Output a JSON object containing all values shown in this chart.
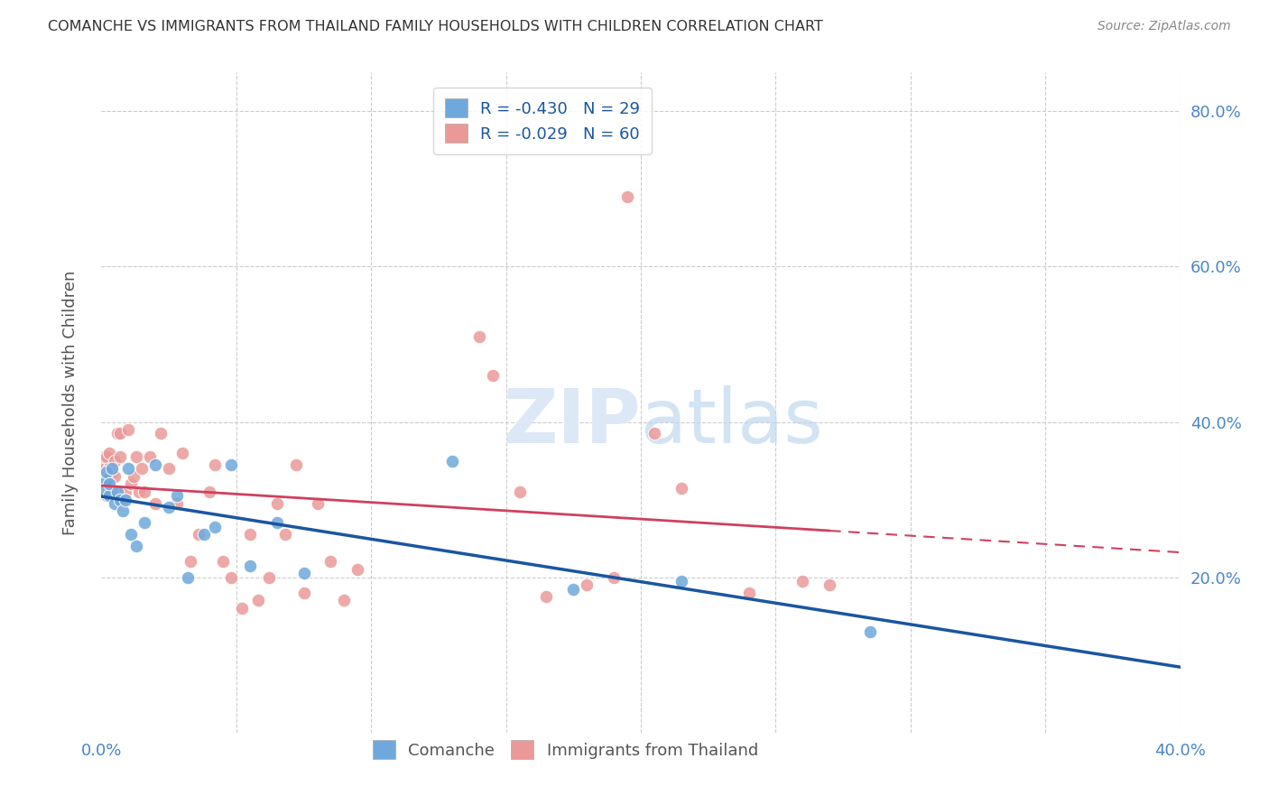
{
  "title": "COMANCHE VS IMMIGRANTS FROM THAILAND FAMILY HOUSEHOLDS WITH CHILDREN CORRELATION CHART",
  "source": "Source: ZipAtlas.com",
  "ylabel": "Family Households with Children",
  "legend_label1": "Comanche",
  "legend_label2": "Immigrants from Thailand",
  "r1": -0.43,
  "n1": 29,
  "r2": -0.029,
  "n2": 60,
  "xlim": [
    0.0,
    0.4
  ],
  "ylim": [
    0.0,
    0.85
  ],
  "color1": "#6fa8dc",
  "color2": "#ea9999",
  "trendline1_color": "#1a56a0",
  "trendline2_color": "#d04060",
  "watermark_color": "#dce8f5",
  "background_color": "#ffffff",
  "comanche_x": [
    0.001,
    0.002,
    0.002,
    0.003,
    0.003,
    0.004,
    0.005,
    0.006,
    0.007,
    0.008,
    0.009,
    0.01,
    0.011,
    0.013,
    0.016,
    0.02,
    0.025,
    0.028,
    0.032,
    0.038,
    0.042,
    0.048,
    0.055,
    0.065,
    0.075,
    0.13,
    0.175,
    0.215,
    0.285
  ],
  "comanche_y": [
    0.31,
    0.325,
    0.335,
    0.305,
    0.32,
    0.34,
    0.295,
    0.31,
    0.3,
    0.285,
    0.3,
    0.34,
    0.255,
    0.24,
    0.27,
    0.345,
    0.29,
    0.305,
    0.2,
    0.255,
    0.265,
    0.345,
    0.215,
    0.27,
    0.205,
    0.35,
    0.185,
    0.195,
    0.13
  ],
  "thailand_x": [
    0.001,
    0.001,
    0.001,
    0.002,
    0.002,
    0.002,
    0.003,
    0.003,
    0.004,
    0.004,
    0.005,
    0.005,
    0.006,
    0.007,
    0.007,
    0.008,
    0.009,
    0.01,
    0.011,
    0.012,
    0.013,
    0.014,
    0.015,
    0.016,
    0.018,
    0.02,
    0.022,
    0.025,
    0.028,
    0.03,
    0.033,
    0.036,
    0.04,
    0.042,
    0.045,
    0.048,
    0.052,
    0.055,
    0.058,
    0.062,
    0.065,
    0.068,
    0.072,
    0.075,
    0.08,
    0.085,
    0.09,
    0.095,
    0.14,
    0.145,
    0.155,
    0.165,
    0.18,
    0.19,
    0.195,
    0.205,
    0.215,
    0.24,
    0.26,
    0.27
  ],
  "thailand_y": [
    0.335,
    0.345,
    0.355,
    0.305,
    0.32,
    0.355,
    0.34,
    0.36,
    0.31,
    0.335,
    0.35,
    0.33,
    0.385,
    0.355,
    0.385,
    0.3,
    0.31,
    0.39,
    0.32,
    0.33,
    0.355,
    0.31,
    0.34,
    0.31,
    0.355,
    0.295,
    0.385,
    0.34,
    0.295,
    0.36,
    0.22,
    0.255,
    0.31,
    0.345,
    0.22,
    0.2,
    0.16,
    0.255,
    0.17,
    0.2,
    0.295,
    0.255,
    0.345,
    0.18,
    0.295,
    0.22,
    0.17,
    0.21,
    0.51,
    0.46,
    0.31,
    0.175,
    0.19,
    0.2,
    0.69,
    0.385,
    0.315,
    0.18,
    0.195,
    0.19
  ]
}
